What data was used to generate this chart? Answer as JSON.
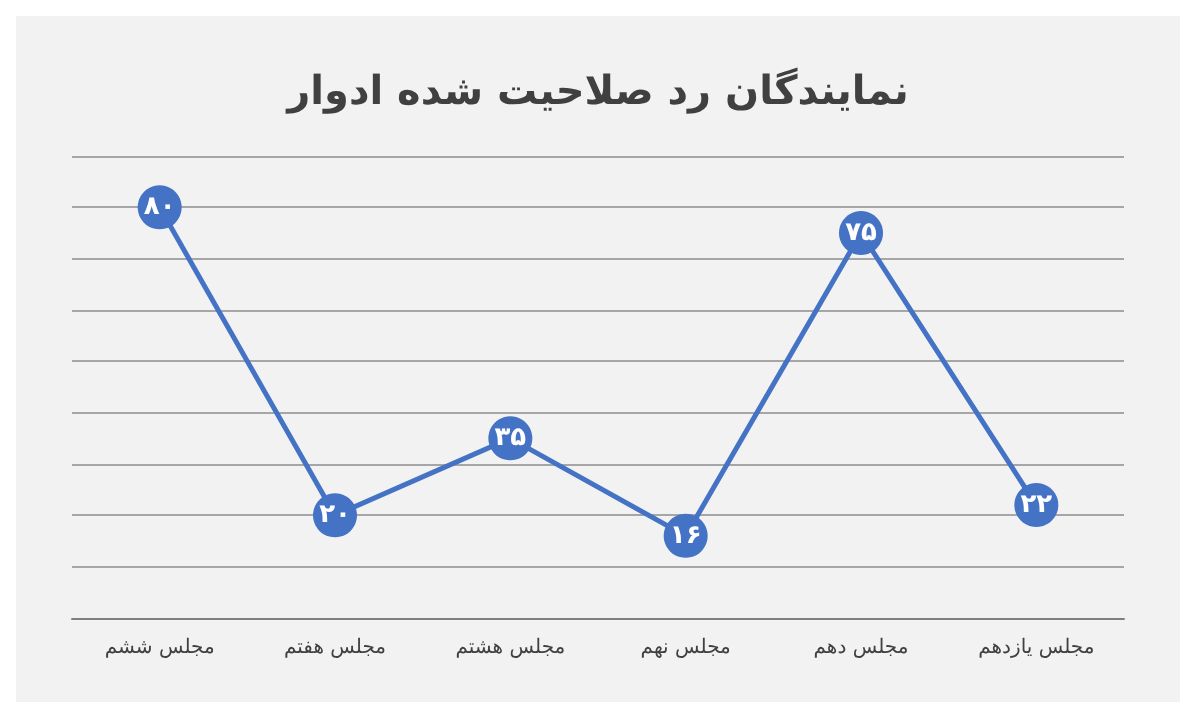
{
  "chart_data": {
    "type": "line",
    "title": "نمایندگان رد صلاحیت شده ادوار",
    "categories": [
      "مجلس ششم",
      "مجلس هفتم",
      "مجلس هشتم",
      "مجلس نهم",
      "مجلس دهم",
      "مجلس یازدهم"
    ],
    "series": [
      {
        "color": "#4472c4",
        "values": [
          80,
          20,
          35,
          16,
          75,
          22
        ],
        "value_labels": [
          "۸۰",
          "۲۰",
          "۳۵",
          "۱۶",
          "۷۵",
          "۲۲"
        ]
      }
    ],
    "ylim": [
      0,
      90
    ],
    "yticks": [
      {
        "value": 0,
        "label": null
      },
      {
        "value": 10,
        "label": null
      },
      {
        "value": 20,
        "label": null
      },
      {
        "value": 30,
        "label": null
      },
      {
        "value": 40,
        "label": null
      },
      {
        "value": 50,
        "label": null
      },
      {
        "value": 60,
        "label": null
      },
      {
        "value": 70,
        "label": null
      },
      {
        "value": 80,
        "label": null
      },
      {
        "value": 90,
        "label": null
      }
    ],
    "grid": "y",
    "tick_labels": "x",
    "marker": "circle",
    "line_style": "solid"
  }
}
